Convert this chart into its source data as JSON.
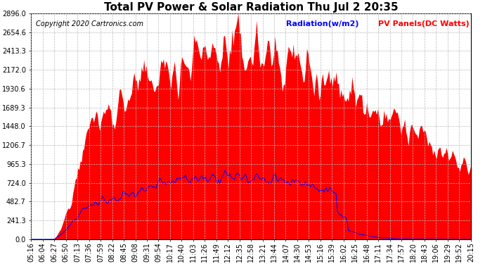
{
  "title": "Total PV Power & Solar Radiation Thu Jul 2 20:35",
  "copyright": "Copyright 2020 Cartronics.com",
  "legend_radiation": "Radiation(w/m2)",
  "legend_pv": "PV Panels(DC Watts)",
  "ymax": 2896.0,
  "yticks": [
    0.0,
    241.3,
    482.7,
    724.0,
    965.3,
    1206.7,
    1448.0,
    1689.3,
    1930.6,
    2172.0,
    2413.3,
    2654.6,
    2896.0
  ],
  "background_color": "#ffffff",
  "grid_color": "#bbbbbb",
  "pv_color": "#ff0000",
  "radiation_color": "#0000ff",
  "n_points": 360,
  "title_fontsize": 11,
  "axis_fontsize": 7,
  "legend_fontsize": 8,
  "copyright_fontsize": 7
}
